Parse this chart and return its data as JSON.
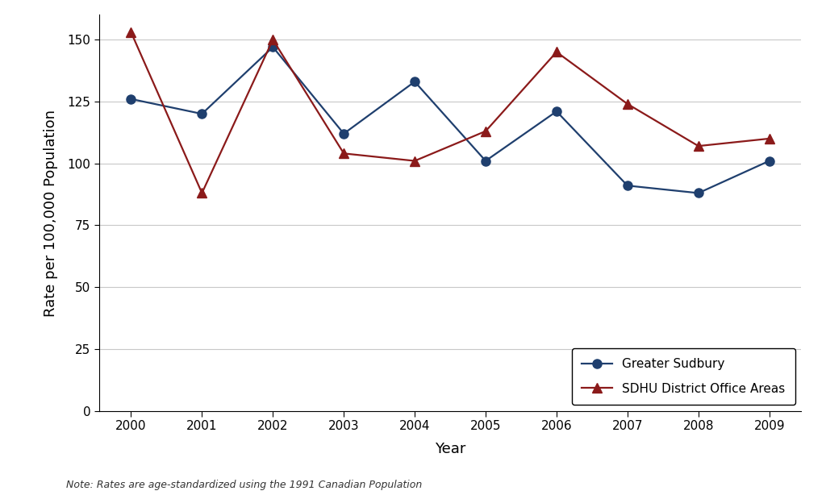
{
  "years": [
    2000,
    2001,
    2002,
    2003,
    2004,
    2005,
    2006,
    2007,
    2008,
    2009
  ],
  "greater_sudbury": [
    126,
    120,
    147,
    112,
    133,
    101,
    121,
    91,
    88,
    101
  ],
  "sdhu_district": [
    153,
    88,
    150,
    104,
    101,
    113,
    145,
    124,
    107,
    110
  ],
  "greater_sudbury_color": "#1f3f6e",
  "sdhu_color": "#8b1a1a",
  "ylabel": "Rate per 100,000 Population",
  "xlabel": "Year",
  "note": "Note: Rates are age-standardized using the 1991 Canadian Population",
  "legend_greater_sudbury": "Greater Sudbury",
  "legend_sdhu": "SDHU District Office Areas",
  "ylim": [
    0,
    160
  ],
  "yticks": [
    0,
    25,
    50,
    75,
    100,
    125,
    150
  ],
  "background_color": "#ffffff",
  "grid_color": "#c8c8c8",
  "note_fontsize": 9,
  "axis_label_fontsize": 13,
  "tick_fontsize": 11,
  "legend_fontsize": 11
}
